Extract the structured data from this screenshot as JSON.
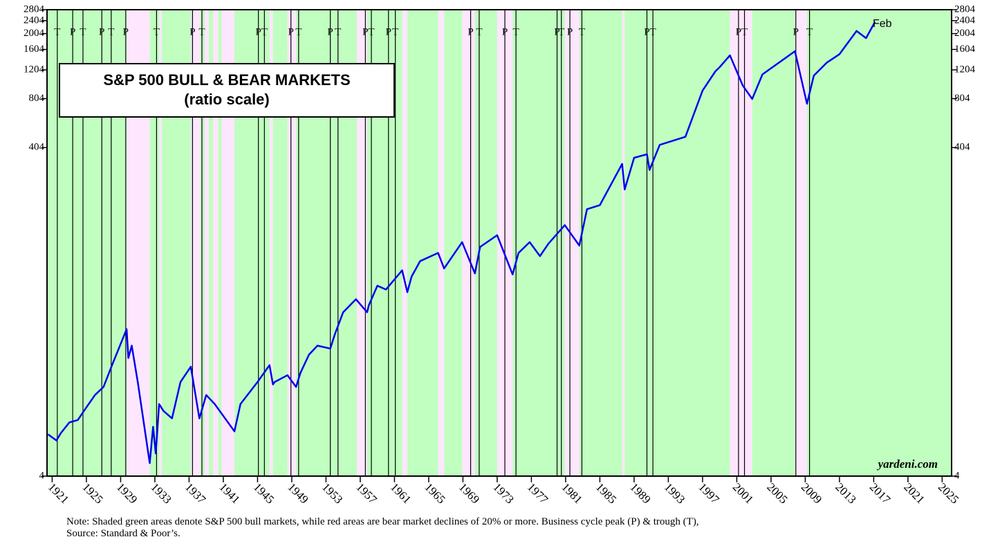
{
  "chart_data": {
    "type": "line",
    "title": "S&P 500 BULL & BEAR MARKETS",
    "subtitle": "(ratio scale)",
    "annotations": [
      "Feb",
      "yardeni.com"
    ],
    "notes": [
      "Note: Shaded green areas denote S&P 500 bull markets, while red areas are bear market declines of 20% or more. Business cycle peak (P) & trough (T),",
      "Source: Standard & Poor’s."
    ],
    "log_scale": true,
    "color": "#0000ee",
    "bull_color": "#c0ffc0",
    "bear_color": "#ffe6ff",
    "xlim": [
      1920.4,
      2026.1
    ],
    "xticks": [
      1921,
      1925,
      1929,
      1933,
      1937,
      1941,
      1945,
      1949,
      1953,
      1957,
      1961,
      1965,
      1969,
      1973,
      1977,
      1981,
      1985,
      1989,
      1993,
      1997,
      2001,
      2005,
      2009,
      2013,
      2017,
      2021,
      2025
    ],
    "ylim": [
      4,
      2804
    ],
    "yticks": [
      4,
      404,
      804,
      1204,
      1604,
      2004,
      2404,
      2804
    ],
    "x": [
      1920.5,
      1921.5,
      1922,
      1923,
      1924,
      1925,
      1926,
      1927,
      1928,
      1929.7,
      1929.9,
      1930.3,
      1931,
      1932.4,
      1932.8,
      1933.1,
      1933.5,
      1934,
      1935,
      1936,
      1937.2,
      1938.2,
      1939,
      1940,
      1942.3,
      1943,
      1945,
      1946.4,
      1946.8,
      1947,
      1948.5,
      1949.5,
      1950,
      1951,
      1952,
      1953.5,
      1954,
      1955,
      1956.5,
      1957.8,
      1958,
      1959,
      1960,
      1961.9,
      1962.5,
      1963,
      1964,
      1966.1,
      1966.8,
      1968.9,
      1970.4,
      1971,
      1973.0,
      1974.8,
      1975.5,
      1976.8,
      1978,
      1979,
      1980.9,
      1982.6,
      1983.5,
      1985,
      1987.6,
      1987.9,
      1989,
      1990.5,
      1990.8,
      1992,
      1995,
      1997,
      1998.5,
      1999,
      2000.2,
      2001.7,
      2002.8,
      2004,
      2007.8,
      2009.2,
      2010,
      2011.5,
      2013,
      2015,
      2016.1,
      2017.15
    ],
    "values": [
      7.2,
      6.6,
      7.3,
      8.5,
      8.8,
      10.5,
      12.5,
      14,
      19,
      31.5,
      21,
      25,
      15,
      4.8,
      8,
      5.5,
      11,
      10,
      9,
      15,
      18.6,
      9,
      12.5,
      11,
      7.5,
      11,
      15,
      19,
      14.5,
      15,
      16.5,
      14,
      17,
      22,
      25,
      24,
      29,
      40,
      48,
      40,
      44,
      58,
      55,
      72,
      53,
      66,
      82,
      92,
      74,
      107,
      69,
      100,
      118,
      68,
      92,
      107,
      88,
      105,
      136,
      102,
      170,
      180,
      321,
      224,
      350,
      368,
      295,
      420,
      470,
      900,
      1180,
      1250,
      1476,
      965,
      800,
      1130,
      1565,
      748,
      1110,
      1330,
      1500,
      2080,
      1880,
      2364
    ],
    "bear_markets": [
      [
        1929.7,
        1932.4
      ],
      [
        1933.5,
        1933.8
      ],
      [
        1937.2,
        1938.3
      ],
      [
        1938.8,
        1939.3
      ],
      [
        1939.8,
        1940.4
      ],
      [
        1940.8,
        1942.3
      ],
      [
        1946.4,
        1946.8
      ],
      [
        1948.5,
        1949.5
      ],
      [
        1956.6,
        1957.8
      ],
      [
        1961.9,
        1962.5
      ],
      [
        1966.1,
        1966.8
      ],
      [
        1968.9,
        1970.4
      ],
      [
        1973.0,
        1974.8
      ],
      [
        1980.9,
        1982.6
      ],
      [
        1987.6,
        1987.9
      ],
      [
        2000.2,
        2002.8
      ],
      [
        2007.8,
        2009.2
      ]
    ],
    "cycle_markers": [
      {
        "label": "T",
        "x": 1921.6
      },
      {
        "label": "P",
        "x": 1923.4
      },
      {
        "label": "T",
        "x": 1924.6
      },
      {
        "label": "P",
        "x": 1926.8
      },
      {
        "label": "T",
        "x": 1927.9
      },
      {
        "label": "P",
        "x": 1929.6
      },
      {
        "label": "T",
        "x": 1933.2
      },
      {
        "label": "P",
        "x": 1937.4
      },
      {
        "label": "T",
        "x": 1938.5
      },
      {
        "label": "P",
        "x": 1945.1
      },
      {
        "label": "T",
        "x": 1945.8
      },
      {
        "label": "P",
        "x": 1948.9
      },
      {
        "label": "T",
        "x": 1949.8
      },
      {
        "label": "P",
        "x": 1953.5
      },
      {
        "label": "T",
        "x": 1954.4
      },
      {
        "label": "P",
        "x": 1957.6
      },
      {
        "label": "T",
        "x": 1958.3
      },
      {
        "label": "P",
        "x": 1960.3
      },
      {
        "label": "T",
        "x": 1961.1
      },
      {
        "label": "P",
        "x": 1969.9
      },
      {
        "label": "T",
        "x": 1970.9
      },
      {
        "label": "P",
        "x": 1973.9
      },
      {
        "label": "T",
        "x": 1975.2
      },
      {
        "label": "P",
        "x": 1980.0
      },
      {
        "label": "T",
        "x": 1980.5
      },
      {
        "label": "P",
        "x": 1981.5
      },
      {
        "label": "T",
        "x": 1982.9
      },
      {
        "label": "P",
        "x": 1990.5
      },
      {
        "label": "T",
        "x": 1991.2
      },
      {
        "label": "P",
        "x": 2001.2
      },
      {
        "label": "T",
        "x": 2001.9
      },
      {
        "label": "P",
        "x": 2007.9
      },
      {
        "label": "T",
        "x": 2009.5
      }
    ]
  }
}
